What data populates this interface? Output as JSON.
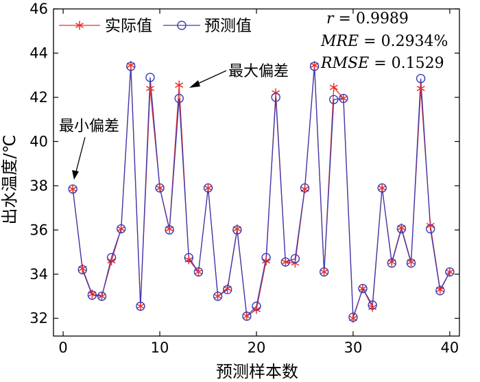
{
  "chart_data": {
    "type": "line",
    "xlabel": "预测样本数",
    "ylabel": "出水温度/℃",
    "xlim": [
      -1,
      41
    ],
    "ylim": [
      31.2,
      46
    ],
    "xticks": [
      0,
      10,
      20,
      30,
      40
    ],
    "yticks": [
      32,
      34,
      36,
      38,
      40,
      42,
      44,
      46
    ],
    "x": [
      1,
      2,
      3,
      4,
      5,
      6,
      7,
      8,
      9,
      10,
      11,
      12,
      13,
      14,
      15,
      16,
      17,
      18,
      19,
      20,
      21,
      22,
      23,
      24,
      25,
      26,
      27,
      28,
      29,
      30,
      31,
      32,
      33,
      34,
      35,
      36,
      37,
      38,
      39,
      40
    ],
    "series": [
      {
        "name": "实际值",
        "color": "#e8302a",
        "marker": "star",
        "values": [
          37.85,
          34.25,
          33.1,
          33.0,
          34.6,
          36.05,
          43.45,
          32.55,
          42.4,
          37.9,
          36.05,
          42.55,
          34.65,
          34.1,
          37.9,
          33.0,
          33.35,
          36.05,
          32.1,
          32.4,
          34.6,
          42.2,
          34.55,
          34.5,
          37.85,
          43.45,
          34.1,
          42.45,
          41.95,
          32.0,
          33.35,
          32.5,
          37.9,
          34.55,
          36.1,
          34.55,
          42.4,
          36.2,
          33.3,
          34.1
        ]
      },
      {
        "name": "预测值",
        "color": "#3a3ab4",
        "marker": "circle",
        "values": [
          37.85,
          34.2,
          33.05,
          33.0,
          34.75,
          36.05,
          43.4,
          32.55,
          42.9,
          37.9,
          36.0,
          41.95,
          34.75,
          34.1,
          37.9,
          33.0,
          33.3,
          36.0,
          32.1,
          32.55,
          34.75,
          42.0,
          34.55,
          34.7,
          37.9,
          43.4,
          34.1,
          41.9,
          41.95,
          32.05,
          33.35,
          32.6,
          37.9,
          34.5,
          36.05,
          34.5,
          42.85,
          36.05,
          33.25,
          34.1
        ]
      }
    ],
    "legend": {
      "position": "top-left"
    },
    "stats": [
      {
        "var": "r",
        "text": " = 0.9989"
      },
      {
        "var": "MRE",
        "text": " = 0.2934%"
      },
      {
        "var": "RMSE",
        "text": " = 0.1529"
      }
    ],
    "annotations": [
      {
        "text": "最大偏差",
        "x": 12,
        "y": 42.55
      },
      {
        "text": "最小偏差",
        "x": 1,
        "y": 37.85
      }
    ],
    "grid": false
  }
}
